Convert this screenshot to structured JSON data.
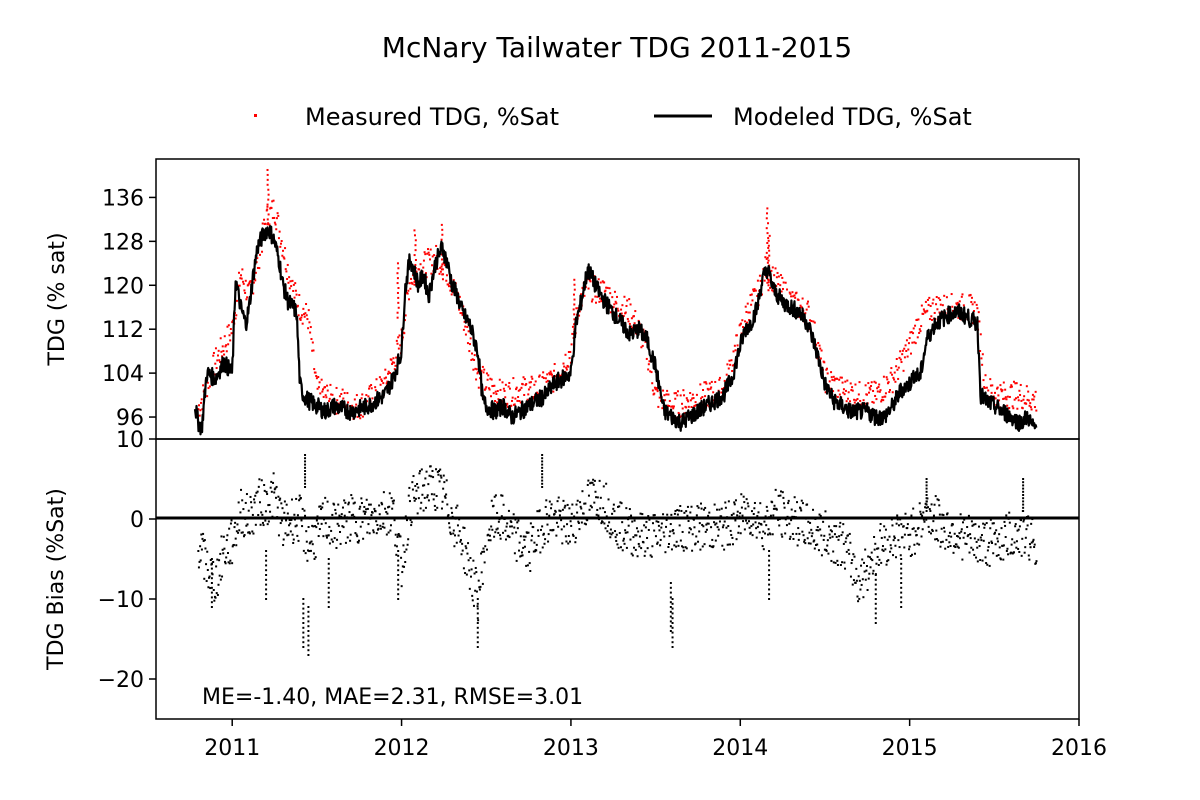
{
  "chart_data": [
    {
      "type": "line",
      "title": "McNary Tailwater TDG 2011-2015",
      "xlabel": "",
      "ylabel": "TDG (% sat)",
      "ylim": [
        92,
        143
      ],
      "yticks": [
        "96",
        "104",
        "112",
        "120",
        "128",
        "136"
      ],
      "legend": {
        "placement": "top-center",
        "entries": [
          "Measured TDG, %Sat",
          "Modeled TDG, %Sat"
        ]
      },
      "grid": false,
      "series": [
        {
          "name": "Measured TDG, %Sat",
          "style": "scatter",
          "color": "#ff0000",
          "x": [
            2010.8,
            2010.9,
            2011.0,
            2011.05,
            2011.1,
            2011.15,
            2011.2,
            2011.25,
            2011.3,
            2011.35,
            2011.4,
            2011.45,
            2011.5,
            2011.55,
            2011.6,
            2011.65,
            2011.7,
            2011.75,
            2011.8,
            2011.9,
            2012.0,
            2012.05,
            2012.1,
            2012.15,
            2012.2,
            2012.25,
            2012.3,
            2012.35,
            2012.4,
            2012.45,
            2012.5,
            2012.55,
            2012.6,
            2012.7,
            2012.8,
            2012.9,
            2013.0,
            2013.05,
            2013.1,
            2013.15,
            2013.2,
            2013.25,
            2013.3,
            2013.35,
            2013.4,
            2013.45,
            2013.5,
            2013.55,
            2013.6,
            2013.7,
            2013.8,
            2013.9,
            2014.0,
            2014.05,
            2014.1,
            2014.15,
            2014.2,
            2014.25,
            2014.3,
            2014.35,
            2014.4,
            2014.45,
            2014.5,
            2014.6,
            2014.7,
            2014.8,
            2014.9,
            2015.0,
            2015.05,
            2015.1,
            2015.15,
            2015.2,
            2015.25,
            2015.3,
            2015.35,
            2015.4,
            2015.45,
            2015.55,
            2015.65,
            2015.75
          ],
          "y": [
            97.5,
            106,
            112,
            122,
            118,
            124,
            132,
            134,
            127,
            120,
            116,
            114,
            101,
            100,
            99,
            99,
            98,
            98,
            99,
            102,
            110,
            121,
            123,
            124,
            125,
            124,
            120,
            116,
            110,
            104,
            102,
            101,
            100,
            101,
            101,
            103,
            108,
            117,
            120,
            119,
            119,
            117,
            116,
            115,
            112,
            108,
            100,
            99,
            98,
            99,
            100,
            101,
            111,
            116,
            118,
            123,
            121,
            119,
            117,
            116,
            115,
            110,
            103,
            101,
            100,
            100,
            103,
            109,
            113,
            115,
            116,
            116,
            116,
            116,
            116,
            115,
            101,
            100,
            100,
            99
          ],
          "peaks": [
            {
              "x": 2011.21,
              "y": 141
            },
            {
              "x": 2011.98,
              "y": 124
            },
            {
              "x": 2012.08,
              "y": 130
            },
            {
              "x": 2012.24,
              "y": 131
            },
            {
              "x": 2013.02,
              "y": 121
            },
            {
              "x": 2014.16,
              "y": 134
            },
            {
              "x": 2014.17,
              "y": 129
            }
          ]
        },
        {
          "name": "Modeled TDG, %Sat",
          "style": "line",
          "color": "#000000",
          "x": [
            2010.78,
            2010.8,
            2010.82,
            2010.85,
            2010.9,
            2010.95,
            2011.0,
            2011.02,
            2011.05,
            2011.08,
            2011.1,
            2011.12,
            2011.15,
            2011.18,
            2011.2,
            2011.22,
            2011.25,
            2011.28,
            2011.3,
            2011.33,
            2011.36,
            2011.38,
            2011.4,
            2011.42,
            2011.45,
            2011.5,
            2011.55,
            2011.6,
            2011.7,
            2011.8,
            2011.85,
            2011.9,
            2011.95,
            2012.0,
            2012.02,
            2012.05,
            2012.08,
            2012.1,
            2012.13,
            2012.16,
            2012.2,
            2012.24,
            2012.27,
            2012.3,
            2012.33,
            2012.36,
            2012.4,
            2012.45,
            2012.48,
            2012.5,
            2012.55,
            2012.6,
            2012.65,
            2012.7,
            2012.75,
            2012.8,
            2012.85,
            2012.9,
            2012.95,
            2013.0,
            2013.03,
            2013.06,
            2013.1,
            2013.13,
            2013.16,
            2013.2,
            2013.25,
            2013.3,
            2013.35,
            2013.4,
            2013.45,
            2013.5,
            2013.55,
            2013.6,
            2013.65,
            2013.7,
            2013.75,
            2013.8,
            2013.85,
            2013.9,
            2013.95,
            2014.0,
            2014.03,
            2014.06,
            2014.1,
            2014.13,
            2014.16,
            2014.2,
            2014.25,
            2014.3,
            2014.35,
            2014.4,
            2014.45,
            2014.5,
            2014.55,
            2014.6,
            2014.65,
            2014.7,
            2014.75,
            2014.8,
            2014.85,
            2014.9,
            2014.95,
            2015.0,
            2015.03,
            2015.06,
            2015.1,
            2015.15,
            2015.2,
            2015.25,
            2015.3,
            2015.35,
            2015.4,
            2015.42,
            2015.45,
            2015.5,
            2015.55,
            2015.6,
            2015.65,
            2015.7,
            2015.73,
            2015.75
          ],
          "y": [
            98,
            95,
            94,
            104,
            103,
            106,
            104,
            121,
            116,
            113,
            116,
            121,
            127,
            129,
            130,
            130,
            128,
            124,
            120,
            117,
            116,
            115,
            102,
            100,
            99,
            98,
            97,
            98,
            97,
            98,
            99,
            100,
            103,
            108,
            119,
            125,
            122,
            120,
            122,
            118,
            124,
            127,
            124,
            120,
            118,
            115,
            113,
            108,
            99,
            98,
            97,
            98,
            96,
            97,
            98,
            99,
            100,
            102,
            103,
            104,
            113,
            117,
            123,
            121,
            119,
            117,
            115,
            113,
            111,
            112,
            110,
            105,
            97,
            96,
            95,
            96,
            97,
            98,
            99,
            100,
            103,
            109,
            112,
            113,
            116,
            121,
            123,
            119,
            117,
            116,
            115,
            113,
            108,
            102,
            99,
            98,
            97,
            97,
            97,
            96,
            96,
            98,
            101,
            102,
            104,
            103,
            110,
            113,
            114,
            115,
            115,
            114,
            113,
            100,
            99,
            98,
            97,
            96,
            95,
            96,
            94,
            94
          ]
        }
      ]
    },
    {
      "type": "scatter",
      "xlabel": "",
      "ylabel": "TDG Bias (%Sat)",
      "ylim": [
        -25,
        10
      ],
      "yticks": [
        "10",
        "0",
        "−10",
        "−20"
      ],
      "xlim": [
        2010.55,
        2016.0
      ],
      "xticks": [
        "2011",
        "2012",
        "2013",
        "2014",
        "2015",
        "2016"
      ],
      "annotation": "ME=-1.40, MAE=2.31, RMSE=3.01",
      "reference_line": 0,
      "series": [
        {
          "name": "TDG Bias",
          "color": "#000000",
          "x": [
            2010.8,
            2010.85,
            2010.9,
            2010.95,
            2011.0,
            2011.05,
            2011.1,
            2011.15,
            2011.2,
            2011.25,
            2011.3,
            2011.35,
            2011.4,
            2011.45,
            2011.5,
            2011.55,
            2011.6,
            2011.7,
            2011.8,
            2011.9,
            2011.95,
            2012.0,
            2012.05,
            2012.1,
            2012.15,
            2012.2,
            2012.25,
            2012.3,
            2012.35,
            2012.4,
            2012.45,
            2012.5,
            2012.55,
            2012.6,
            2012.65,
            2012.7,
            2012.75,
            2012.8,
            2012.85,
            2012.9,
            2013.0,
            2013.05,
            2013.1,
            2013.15,
            2013.2,
            2013.25,
            2013.3,
            2013.4,
            2013.5,
            2013.6,
            2013.7,
            2013.8,
            2013.9,
            2014.0,
            2014.05,
            2014.1,
            2014.15,
            2014.2,
            2014.3,
            2014.4,
            2014.5,
            2014.6,
            2014.65,
            2014.7,
            2014.75,
            2014.8,
            2014.85,
            2014.9,
            2015.0,
            2015.05,
            2015.1,
            2015.2,
            2015.3,
            2015.4,
            2015.5,
            2015.6,
            2015.7,
            2015.75
          ],
          "y": [
            -3,
            -6,
            -8,
            -4,
            -3,
            1,
            0,
            2,
            2,
            3,
            -1,
            0,
            0,
            -3,
            -2,
            0,
            -1,
            0,
            0,
            1,
            1,
            -6,
            2,
            3,
            4,
            4,
            3,
            0,
            -2,
            -6,
            -10,
            -2,
            0,
            0,
            -2,
            -3,
            -4,
            -2,
            0,
            0,
            -1,
            1,
            2,
            3,
            2,
            0,
            -1,
            -2,
            -2,
            -1,
            -1,
            -1,
            -1,
            0,
            1,
            0,
            -1,
            1,
            0,
            -1,
            -2,
            -3,
            -5,
            -8,
            -6,
            -4,
            -3,
            -2,
            -2,
            -1,
            1,
            -1,
            -2,
            -3,
            -3,
            -2,
            -2,
            -3
          ],
          "outliers": [
            {
              "x": 2010.88,
              "y": -11
            },
            {
              "x": 2011.2,
              "y": -10
            },
            {
              "x": 2011.43,
              "y": 8
            },
            {
              "x": 2011.42,
              "y": -16
            },
            {
              "x": 2011.45,
              "y": -17
            },
            {
              "x": 2011.57,
              "y": -11
            },
            {
              "x": 2011.98,
              "y": -10
            },
            {
              "x": 2012.45,
              "y": -16
            },
            {
              "x": 2012.83,
              "y": 8
            },
            {
              "x": 2013.59,
              "y": -14
            },
            {
              "x": 2013.6,
              "y": -16
            },
            {
              "x": 2014.17,
              "y": -10
            },
            {
              "x": 2014.8,
              "y": -13
            },
            {
              "x": 2014.95,
              "y": -11
            },
            {
              "x": 2015.1,
              "y": 5
            },
            {
              "x": 2015.67,
              "y": 5
            }
          ]
        }
      ]
    }
  ]
}
